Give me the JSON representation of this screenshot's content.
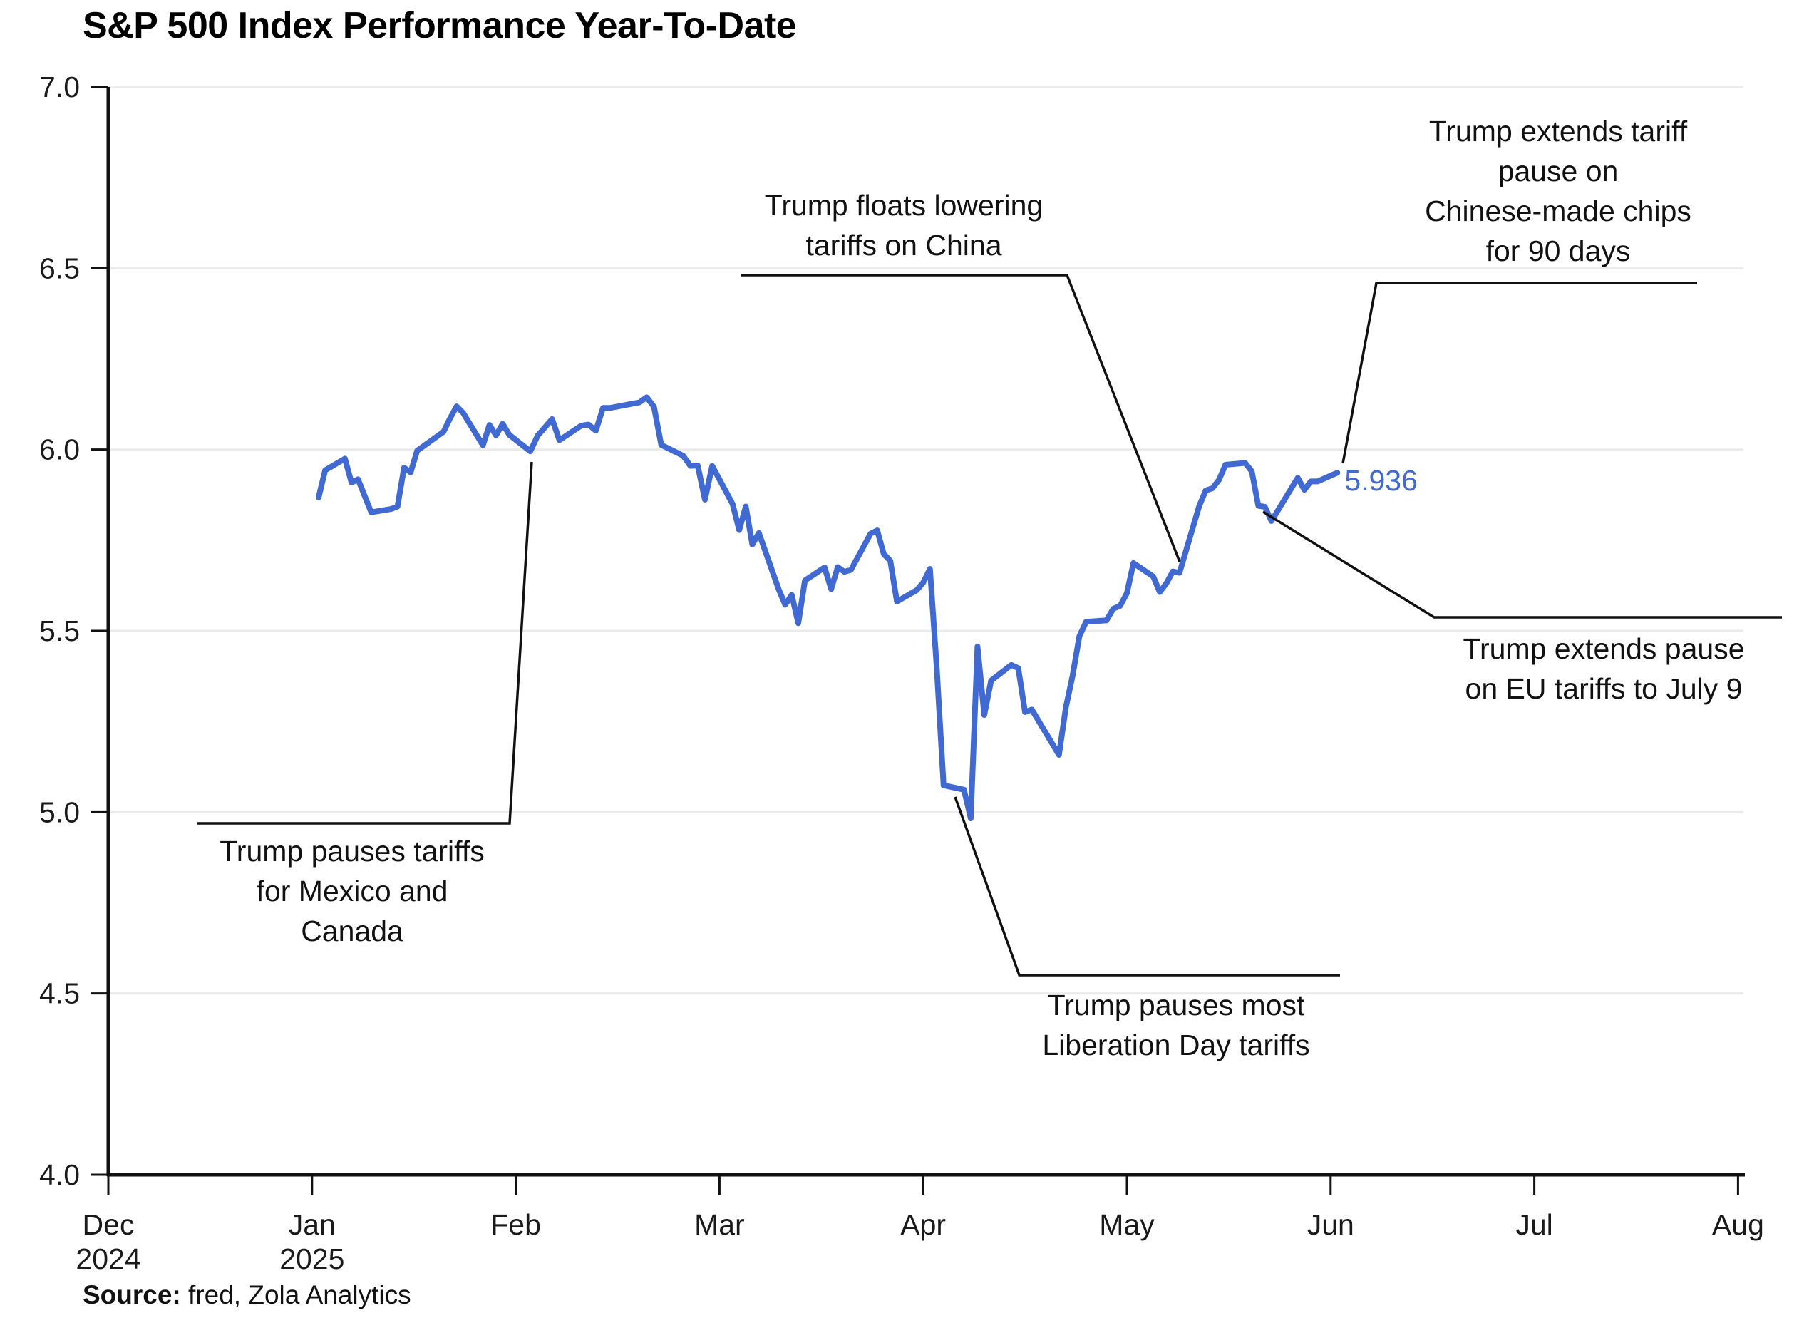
{
  "title": "S&P 500 Index Performance Year-To-Date",
  "source": {
    "label": "Source:",
    "text": " fred, Zola Analytics"
  },
  "colors": {
    "line": "#4169d2",
    "value_label": "#4169d2",
    "grid": "#ebebeb",
    "axis": "#111111",
    "tick_label": "#1a1a1a",
    "annotation_text": "#111111",
    "leader_line": "#111111",
    "background": "#ffffff"
  },
  "chart_data": {
    "type": "line",
    "title": "S&P 500 Index Performance Year-To-Date",
    "xlabel": "",
    "ylabel": "",
    "ylim": [
      4.0,
      7.0
    ],
    "grid": "horizontal",
    "legend": "none",
    "y_ticks": [
      "4.0",
      "4.5",
      "5.0",
      "5.5",
      "6.0",
      "6.5",
      "7.0"
    ],
    "x_ticks": [
      {
        "label": "Dec",
        "sub": "2024"
      },
      {
        "label": "Jan",
        "sub": "2025"
      },
      {
        "label": "Feb"
      },
      {
        "label": "Mar"
      },
      {
        "label": "Apr"
      },
      {
        "label": "May"
      },
      {
        "label": "Jun"
      },
      {
        "label": "Jul"
      },
      {
        "label": "Aug"
      }
    ],
    "end_label": "5.936",
    "series": [
      {
        "name": "S&P 500 index (thousands of points), daily close",
        "points_format": "[month (1=Jan 2025), day, value]",
        "points": [
          [
            1,
            2,
            5.868
          ],
          [
            1,
            3,
            5.943
          ],
          [
            1,
            6,
            5.975
          ],
          [
            1,
            7,
            5.909
          ],
          [
            1,
            8,
            5.918
          ],
          [
            1,
            10,
            5.827
          ],
          [
            1,
            13,
            5.836
          ],
          [
            1,
            14,
            5.843
          ],
          [
            1,
            15,
            5.95
          ],
          [
            1,
            16,
            5.937
          ],
          [
            1,
            17,
            5.997
          ],
          [
            1,
            21,
            6.049
          ],
          [
            1,
            22,
            6.086
          ],
          [
            1,
            23,
            6.119
          ],
          [
            1,
            24,
            6.101
          ],
          [
            1,
            27,
            6.012
          ],
          [
            1,
            28,
            6.068
          ],
          [
            1,
            29,
            6.039
          ],
          [
            1,
            30,
            6.071
          ],
          [
            1,
            31,
            6.041
          ],
          [
            2,
            3,
            5.995
          ],
          [
            2,
            4,
            6.038
          ],
          [
            2,
            5,
            6.061
          ],
          [
            2,
            6,
            6.084
          ],
          [
            2,
            7,
            6.026
          ],
          [
            2,
            10,
            6.066
          ],
          [
            2,
            11,
            6.069
          ],
          [
            2,
            12,
            6.052
          ],
          [
            2,
            13,
            6.115
          ],
          [
            2,
            14,
            6.115
          ],
          [
            2,
            18,
            6.13
          ],
          [
            2,
            19,
            6.144
          ],
          [
            2,
            20,
            6.118
          ],
          [
            2,
            21,
            6.013
          ],
          [
            2,
            24,
            5.983
          ],
          [
            2,
            25,
            5.955
          ],
          [
            2,
            26,
            5.956
          ],
          [
            2,
            27,
            5.862
          ],
          [
            2,
            28,
            5.955
          ],
          [
            3,
            3,
            5.85
          ],
          [
            3,
            4,
            5.778
          ],
          [
            3,
            5,
            5.843
          ],
          [
            3,
            6,
            5.738
          ],
          [
            3,
            7,
            5.77
          ],
          [
            3,
            10,
            5.615
          ],
          [
            3,
            11,
            5.572
          ],
          [
            3,
            12,
            5.599
          ],
          [
            3,
            13,
            5.521
          ],
          [
            3,
            14,
            5.639
          ],
          [
            3,
            17,
            5.675
          ],
          [
            3,
            18,
            5.615
          ],
          [
            3,
            19,
            5.676
          ],
          [
            3,
            20,
            5.663
          ],
          [
            3,
            21,
            5.668
          ],
          [
            3,
            24,
            5.768
          ],
          [
            3,
            25,
            5.777
          ],
          [
            3,
            26,
            5.712
          ],
          [
            3,
            27,
            5.693
          ],
          [
            3,
            28,
            5.581
          ],
          [
            3,
            31,
            5.612
          ],
          [
            4,
            1,
            5.633
          ],
          [
            4,
            2,
            5.671
          ],
          [
            4,
            3,
            5.396
          ],
          [
            4,
            4,
            5.074
          ],
          [
            4,
            7,
            5.062
          ],
          [
            4,
            8,
            4.983
          ],
          [
            4,
            9,
            5.457
          ],
          [
            4,
            10,
            5.268
          ],
          [
            4,
            11,
            5.363
          ],
          [
            4,
            14,
            5.406
          ],
          [
            4,
            15,
            5.397
          ],
          [
            4,
            16,
            5.276
          ],
          [
            4,
            17,
            5.283
          ],
          [
            4,
            21,
            5.158
          ],
          [
            4,
            22,
            5.288
          ],
          [
            4,
            23,
            5.376
          ],
          [
            4,
            24,
            5.485
          ],
          [
            4,
            25,
            5.525
          ],
          [
            4,
            28,
            5.529
          ],
          [
            4,
            29,
            5.561
          ],
          [
            4,
            30,
            5.569
          ],
          [
            5,
            1,
            5.604
          ],
          [
            5,
            2,
            5.687
          ],
          [
            5,
            5,
            5.65
          ],
          [
            5,
            6,
            5.607
          ],
          [
            5,
            7,
            5.631
          ],
          [
            5,
            8,
            5.664
          ],
          [
            5,
            9,
            5.66
          ],
          [
            5,
            12,
            5.844
          ],
          [
            5,
            13,
            5.887
          ],
          [
            5,
            14,
            5.893
          ],
          [
            5,
            15,
            5.916
          ],
          [
            5,
            16,
            5.958
          ],
          [
            5,
            19,
            5.963
          ],
          [
            5,
            20,
            5.94
          ],
          [
            5,
            21,
            5.845
          ],
          [
            5,
            22,
            5.842
          ],
          [
            5,
            23,
            5.803
          ],
          [
            5,
            27,
            5.922
          ],
          [
            5,
            28,
            5.889
          ],
          [
            5,
            29,
            5.912
          ],
          [
            5,
            30,
            5.912
          ],
          [
            6,
            2,
            5.936
          ]
        ]
      }
    ],
    "annotations": [
      {
        "id": "mexico",
        "lines": [
          "Trump pauses tariffs",
          "for Mexico and",
          "Canada"
        ]
      },
      {
        "id": "china",
        "lines": [
          "Trump floats lowering",
          "tariffs on China"
        ]
      },
      {
        "id": "liberation",
        "lines": [
          "Trump pauses most",
          "Liberation Day tariffs"
        ]
      },
      {
        "id": "chips",
        "lines": [
          "Trump extends tariff",
          "pause on",
          "Chinese-made chips",
          "for 90 days"
        ]
      },
      {
        "id": "eu",
        "lines": [
          "Trump extends pause",
          "on EU tariffs to July 9"
        ]
      }
    ]
  }
}
